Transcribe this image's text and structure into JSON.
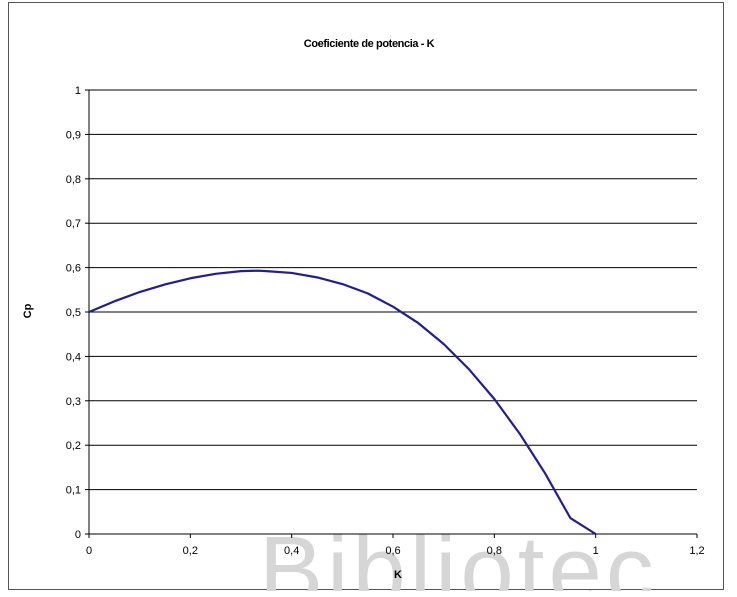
{
  "chart_data": {
    "type": "line",
    "title": "Coeficiente de potencia - K",
    "xlabel": "K",
    "ylabel": "Cp",
    "xlim": [
      0,
      1.2
    ],
    "ylim": [
      0,
      1
    ],
    "grid": true,
    "x_ticks": [
      "0",
      "0,2",
      "0,4",
      "0,6",
      "0,8",
      "1",
      "1,2"
    ],
    "y_ticks": [
      "0",
      "0,1",
      "0,2",
      "0,3",
      "0,4",
      "0,5",
      "0,6",
      "0,7",
      "0,8",
      "0,9",
      "1"
    ],
    "colors": {
      "line": "#1f1f8f",
      "grid": "#000000"
    },
    "series": [
      {
        "x": [
          0,
          0.05,
          0.1,
          0.15,
          0.2,
          0.25,
          0.3,
          0.333,
          0.35,
          0.4,
          0.45,
          0.5,
          0.55,
          0.6,
          0.65,
          0.7,
          0.75,
          0.8,
          0.85,
          0.9,
          0.95,
          1.0
        ],
        "values": [
          0.5,
          0.524,
          0.545,
          0.562,
          0.576,
          0.586,
          0.592,
          0.593,
          0.592,
          0.588,
          0.578,
          0.563,
          0.542,
          0.512,
          0.475,
          0.428,
          0.371,
          0.304,
          0.226,
          0.137,
          0.036,
          0.0
        ]
      }
    ]
  },
  "watermark": {
    "text": "Bibliotec"
  }
}
